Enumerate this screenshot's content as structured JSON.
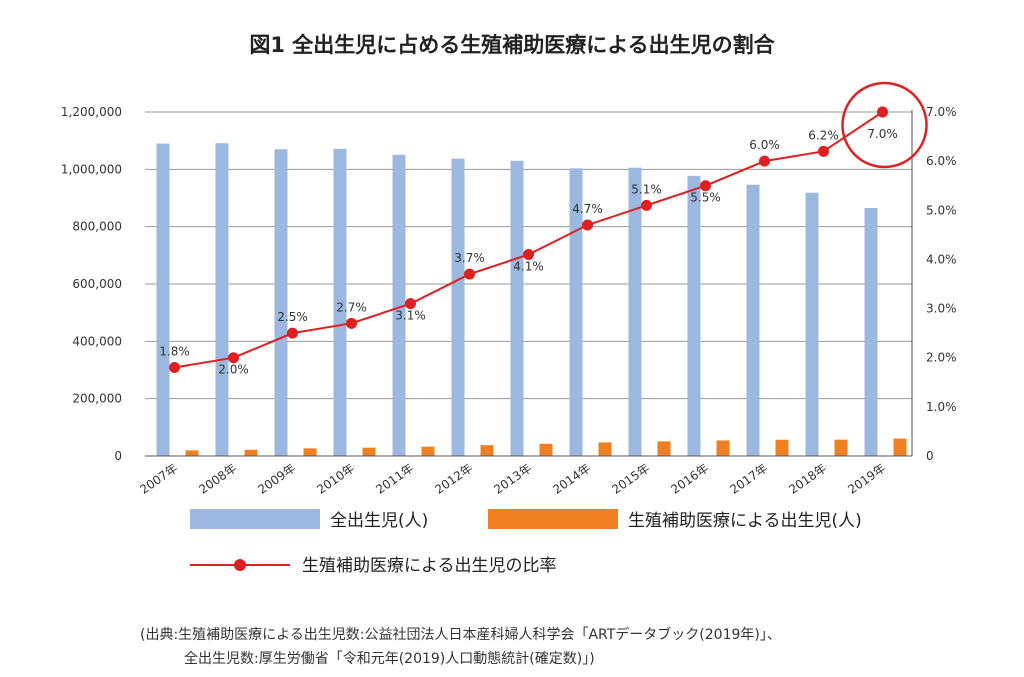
{
  "chart_data": {
    "type": "bar",
    "title": "図1 全出生児に占める生殖補助医療による出生児の割合",
    "categories": [
      "2007年",
      "2008年",
      "2009年",
      "2010年",
      "2011年",
      "2012年",
      "2013年",
      "2014年",
      "2015年",
      "2016年",
      "2017年",
      "2018年",
      "2019年"
    ],
    "series": [
      {
        "name": "全出生児(人)",
        "type": "bar",
        "axis": "left",
        "color": "#9db8e0",
        "values": [
          1089818,
          1091156,
          1070035,
          1071304,
          1050806,
          1037231,
          1029816,
          1003539,
          1005721,
          977242,
          946146,
          918400,
          865239
        ]
      },
      {
        "name": "生殖補助医療による出生児(人)",
        "type": "bar",
        "axis": "left",
        "color": "#f07f21",
        "values": [
          19595,
          21704,
          26680,
          28945,
          32426,
          37953,
          42554,
          47322,
          51001,
          54110,
          56617,
          56979,
          60598
        ]
      },
      {
        "name": "生殖補助医療による出生児の比率",
        "type": "line",
        "axis": "right",
        "color": "#e02020",
        "values": [
          1.8,
          2.0,
          2.5,
          2.7,
          3.1,
          3.7,
          4.1,
          4.7,
          5.1,
          5.5,
          6.0,
          6.2,
          7.0
        ],
        "labels": [
          "1.8%",
          "2.0%",
          "2.5%",
          "2.7%",
          "3.1%",
          "3.7%",
          "4.1%",
          "4.7%",
          "5.1%",
          "5.5%",
          "6.0%",
          "6.2%",
          "7.0%"
        ]
      }
    ],
    "y_left": {
      "ylim": [
        0,
        1200000
      ],
      "ticks": [
        "0",
        "200,000",
        "400,000",
        "600,000",
        "800,000",
        "1,000,000",
        "1,200,000"
      ]
    },
    "y_right": {
      "ylim": [
        0,
        7.0
      ],
      "ticks": [
        "0",
        "1.0%",
        "2.0%",
        "3.0%",
        "4.0%",
        "5.0%",
        "6.0%",
        "7.0%"
      ]
    },
    "grid": true,
    "legend": "bottom",
    "highlight": {
      "category": "2019年",
      "shape": "circle",
      "color": "#e02020"
    }
  },
  "source": {
    "line1": "(出典:生殖補助医療による出生児数:公益社団法人日本産科婦人科学会「ARTデータブック(2019年)」、",
    "line2": "全出生児数:厚生労働省「令和元年(2019)人口動態統計(確定数)」)"
  }
}
